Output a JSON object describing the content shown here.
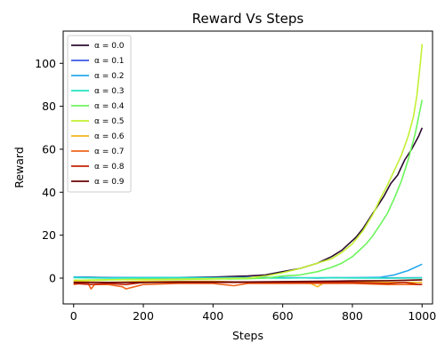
{
  "chart_data": {
    "type": "line",
    "title": "Reward Vs Steps",
    "xlabel": "Steps",
    "ylabel": "Reward",
    "xlim": [
      -30,
      1030
    ],
    "ylim": [
      -12,
      115
    ],
    "xticks": [
      0,
      200,
      400,
      600,
      800,
      1000
    ],
    "yticks": [
      0,
      20,
      40,
      60,
      80,
      100
    ],
    "grid": false,
    "legend_position": "upper-left",
    "series": [
      {
        "name": "α = 0.0",
        "color": "#2d0b30",
        "x": [
          0,
          100,
          200,
          300,
          400,
          500,
          550,
          600,
          650,
          700,
          740,
          770,
          790,
          810,
          830,
          850,
          870,
          890,
          910,
          930,
          950,
          970,
          990,
          1000
        ],
        "y": [
          0.5,
          0.3,
          0.3,
          0.3,
          0.5,
          1,
          1.5,
          3,
          4.5,
          7,
          10,
          13,
          16,
          19,
          23,
          28,
          33,
          38,
          44,
          48,
          55,
          60,
          66,
          70
        ]
      },
      {
        "name": "α = 0.1",
        "color": "#3b59e6",
        "x": [
          0,
          100,
          200,
          300,
          400,
          500,
          600,
          700,
          800,
          900,
          1000
        ],
        "y": [
          0.5,
          0.2,
          0.3,
          0.3,
          0.2,
          0.3,
          0.2,
          0.1,
          0.2,
          0.1,
          0.2
        ]
      },
      {
        "name": "α = 0.2",
        "color": "#29a8ee",
        "x": [
          0,
          100,
          200,
          300,
          400,
          500,
          600,
          700,
          800,
          880,
          920,
          940,
          960,
          980,
          1000
        ],
        "y": [
          0.5,
          0.2,
          0.3,
          0.3,
          0.2,
          0.3,
          0.2,
          0.1,
          0.2,
          0.4,
          1.5,
          2.5,
          3.5,
          5,
          6.5
        ]
      },
      {
        "name": "α = 0.3",
        "color": "#1fe4c1",
        "x": [
          0,
          100,
          200,
          300,
          400,
          500,
          600,
          700,
          800,
          900,
          1000
        ],
        "y": [
          0.2,
          0,
          0.1,
          0.2,
          0.1,
          0.1,
          0,
          0.2,
          0.1,
          0,
          0.1
        ]
      },
      {
        "name": "α = 0.4",
        "color": "#6cf55c",
        "x": [
          0,
          100,
          200,
          300,
          400,
          500,
          550,
          600,
          650,
          700,
          740,
          770,
          800,
          820,
          840,
          860,
          880,
          900,
          920,
          940,
          960,
          980,
          1000
        ],
        "y": [
          -1,
          -0.8,
          -0.6,
          -0.6,
          -0.4,
          -0.3,
          0,
          1,
          1.5,
          3,
          5,
          7,
          10,
          13,
          16,
          20,
          25,
          30,
          37,
          45,
          55,
          67,
          83
        ]
      },
      {
        "name": "α = 0.5",
        "color": "#c3f033",
        "x": [
          0,
          100,
          200,
          300,
          400,
          500,
          550,
          600,
          650,
          700,
          740,
          770,
          800,
          830,
          860,
          880,
          900,
          920,
          940,
          960,
          975,
          985,
          995,
          1000
        ],
        "y": [
          -1,
          -0.8,
          -0.6,
          -0.5,
          -0.3,
          0,
          1,
          2.5,
          4.5,
          7,
          9,
          12,
          16,
          22,
          30,
          37,
          43,
          50,
          57,
          66,
          75,
          85,
          100,
          109
        ]
      },
      {
        "name": "α = 0.6",
        "color": "#f2b51f",
        "x": [
          0,
          100,
          200,
          300,
          400,
          500,
          600,
          680,
          700,
          720,
          800,
          900,
          1000
        ],
        "y": [
          -1.5,
          -2,
          -1.5,
          -1.5,
          -1.5,
          -2,
          -2,
          -2.5,
          -4,
          -2,
          -1.5,
          -2,
          -2
        ]
      },
      {
        "name": "α = 0.7",
        "color": "#f0651b",
        "x": [
          0,
          20,
          40,
          50,
          60,
          100,
          140,
          150,
          200,
          300,
          400,
          460,
          500,
          600,
          700,
          800,
          900,
          1000
        ],
        "y": [
          -3,
          -2.5,
          -2,
          -5,
          -3,
          -3,
          -4,
          -5,
          -3,
          -2.5,
          -2.5,
          -3.5,
          -2.5,
          -2.5,
          -2.5,
          -2.5,
          -3,
          -3
        ]
      },
      {
        "name": "α = 0.8",
        "color": "#c22305",
        "x": [
          0,
          50,
          100,
          150,
          200,
          300,
          400,
          500,
          600,
          700,
          800,
          900,
          950,
          990,
          1000
        ],
        "y": [
          -2.5,
          -3,
          -2.5,
          -3,
          -2,
          -2,
          -2,
          -2,
          -2,
          -2,
          -2,
          -2.5,
          -2,
          -3,
          -3
        ]
      },
      {
        "name": "α = 0.9",
        "color": "#6a0200",
        "x": [
          0,
          100,
          200,
          300,
          400,
          500,
          600,
          700,
          800,
          900,
          1000
        ],
        "y": [
          -2,
          -2,
          -2,
          -1.8,
          -1.8,
          -1.8,
          -1.6,
          -1.5,
          -1.3,
          -1.2,
          -0.8
        ]
      }
    ]
  }
}
